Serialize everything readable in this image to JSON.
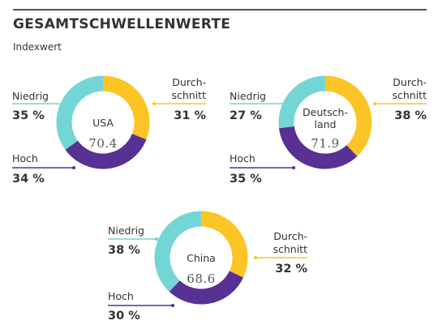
{
  "header": {
    "title": "GESAMTSCHWELLENWERTE",
    "subtitle": "Indexwert"
  },
  "colors": {
    "niedrig": "#74d6d4",
    "durchschnitt": "#fdc426",
    "hoch": "#573193",
    "highlight": "#e0294f"
  },
  "chart_data": [
    {
      "type": "pie",
      "title": "USA",
      "center_value": "70.4",
      "categories": [
        "Niedrig",
        "Durchschnitt",
        "Hoch"
      ],
      "values": [
        35,
        31,
        34
      ],
      "value_labels": [
        "35 %",
        "31 %",
        "34 %"
      ],
      "label_lines": [
        [
          "Niedrig"
        ],
        [
          "Durch-",
          "schnitt"
        ],
        [
          "Hoch"
        ]
      ]
    },
    {
      "type": "pie",
      "title": "Deutsch-land",
      "title_lines": [
        "Deutsch-",
        "land"
      ],
      "center_value": "71.9",
      "categories": [
        "Niedrig",
        "Durchschnitt",
        "Hoch"
      ],
      "values": [
        27,
        38,
        35
      ],
      "value_labels": [
        "27 %",
        "38 %",
        "35 %"
      ],
      "highlight": "Niedrig",
      "label_lines": [
        [
          "Niedrig"
        ],
        [
          "Durch-",
          "schnitt"
        ],
        [
          "Hoch"
        ]
      ]
    },
    {
      "type": "pie",
      "title": "China",
      "center_value": "68.6",
      "categories": [
        "Niedrig",
        "Durchschnitt",
        "Hoch"
      ],
      "values": [
        38,
        32,
        30
      ],
      "value_labels": [
        "38 %",
        "32 %",
        "30 %"
      ],
      "label_lines": [
        [
          "Niedrig"
        ],
        [
          "Durch-",
          "schnitt"
        ],
        [
          "Hoch"
        ]
      ]
    }
  ]
}
